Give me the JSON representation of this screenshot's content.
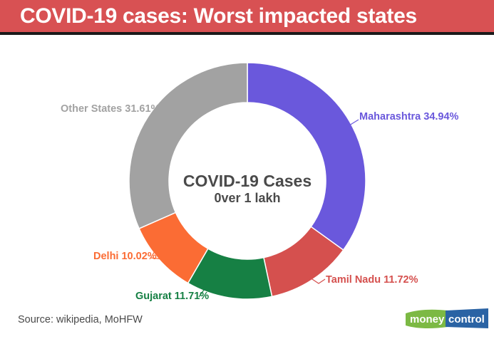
{
  "header": {
    "title": "COVID-19 cases: Worst impacted states",
    "background": "#d85153",
    "text_color": "#ffffff"
  },
  "chart_data": {
    "type": "pie",
    "donut": true,
    "title": "COVID-19 Cases",
    "subtitle": "0ver 1 lakh",
    "start_angle_deg": 0,
    "direction": "clockwise",
    "units": "%",
    "segments": [
      {
        "label": "Maharashtra",
        "value": 34.94,
        "display": "Maharashtra 34.94%",
        "color": "#6a58dc"
      },
      {
        "label": "Tamil Nadu",
        "value": 11.72,
        "display": "Tamil Nadu 11.72%",
        "color": "#d5504e"
      },
      {
        "label": "Gujarat",
        "value": 11.71,
        "display": "Gujarat 11.71%",
        "color": "#168044"
      },
      {
        "label": "Delhi",
        "value": 10.02,
        "display": "Delhi 10.02%",
        "color": "#fb6c34"
      },
      {
        "label": "Other States",
        "value": 31.61,
        "display": "Other States 31.61%",
        "color": "#a2a2a2"
      }
    ]
  },
  "footer": {
    "source": "Source: wikipedia, MoHFW",
    "logo": {
      "part1": "money",
      "part2": "control",
      "green": "#7cb944",
      "blue": "#2a63a4"
    }
  }
}
